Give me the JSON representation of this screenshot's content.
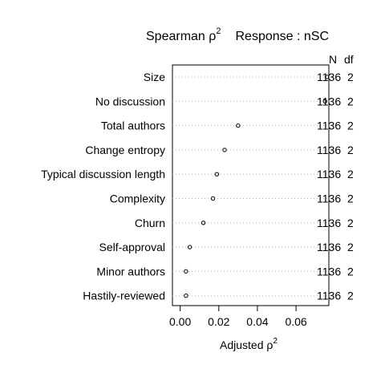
{
  "chart_data": {
    "type": "scatter",
    "title_left": "Spearman ρ",
    "title_left_sup": "2",
    "title_right": "Response : nSC",
    "xlabel": "Adjusted ρ",
    "xlabel_sup": "2",
    "xlim": [
      -0.004,
      0.077
    ],
    "xticks": [
      0.0,
      0.02,
      0.04,
      0.06
    ],
    "xtick_labels": [
      "0.00",
      "0.02",
      "0.04",
      "0.06"
    ],
    "grid": "dotted horizontal",
    "right_columns": {
      "n_header": "N",
      "df_header": "df"
    },
    "categories": [
      "Size",
      "No discussion",
      "Total authors",
      "Change entropy",
      "Typical discussion length",
      "Complexity",
      "Churn",
      "Self-approval",
      "Minor authors",
      "Hastily-reviewed"
    ],
    "values": [
      0.076,
      0.075,
      0.03,
      0.023,
      0.019,
      0.017,
      0.012,
      0.005,
      0.003,
      0.003
    ],
    "n": [
      "1136",
      "1136",
      "1136",
      "1136",
      "1136",
      "1136",
      "1136",
      "1136",
      "1136",
      "1136"
    ],
    "df": [
      "2",
      "2",
      "2",
      "2",
      "2",
      "2",
      "2",
      "2",
      "2",
      "2"
    ]
  }
}
